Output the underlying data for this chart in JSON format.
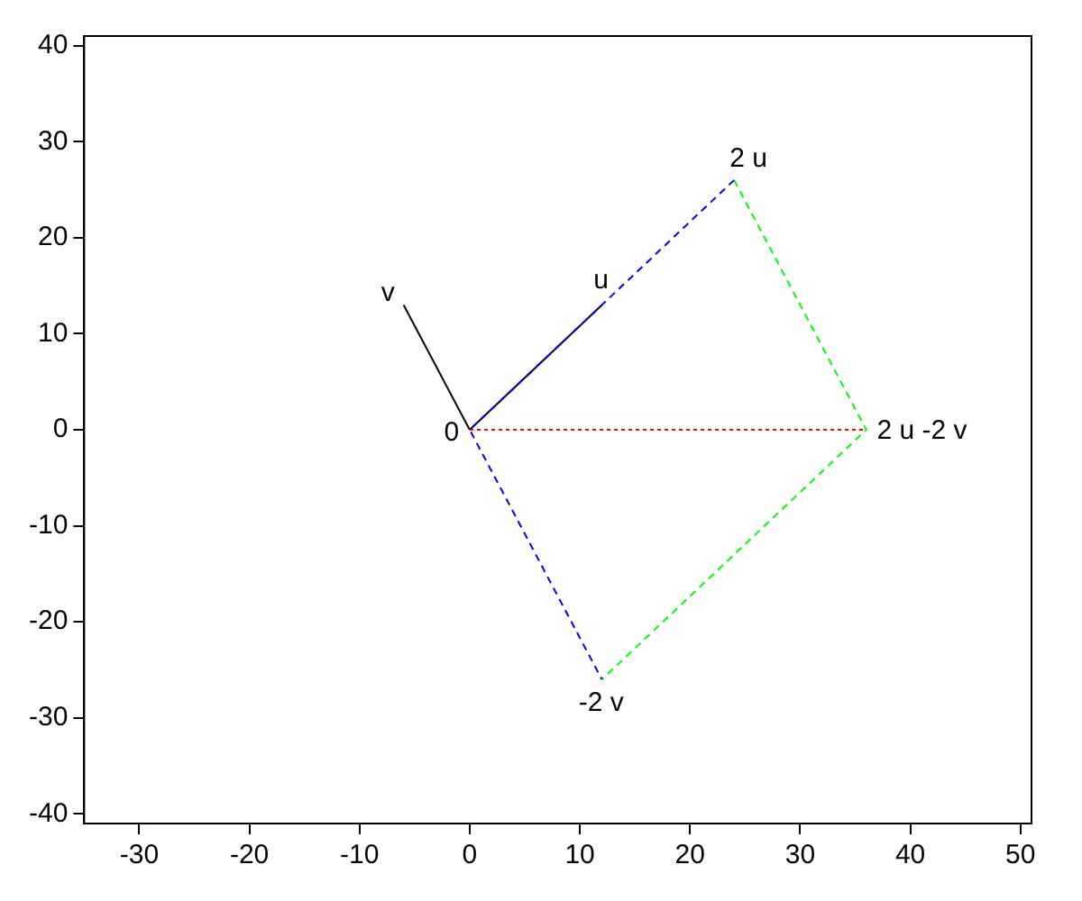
{
  "chart_data": {
    "type": "line",
    "xlim": [
      -35,
      51
    ],
    "ylim": [
      -41,
      41
    ],
    "xticks": [
      -30,
      -20,
      -10,
      0,
      10,
      20,
      30,
      40,
      50
    ],
    "yticks": [
      -40,
      -30,
      -20,
      -10,
      0,
      10,
      20,
      30,
      40
    ],
    "grid": false,
    "legend": false,
    "marker": "none",
    "series": [
      {
        "color": "#0000ff",
        "line_style": "dashed",
        "x": [
          24,
          0,
          12
        ],
        "values": [
          26,
          0,
          -26
        ]
      },
      {
        "color": "#00ff00",
        "line_style": "dashed",
        "x": [
          24,
          36,
          12
        ],
        "values": [
          26,
          0,
          -26
        ]
      },
      {
        "color": "#ff0000",
        "line_style": "dotted",
        "x": [
          0,
          36
        ],
        "values": [
          0,
          0
        ]
      },
      {
        "color": "#000000",
        "line_style": "solid",
        "x": [
          0,
          12
        ],
        "values": [
          0,
          13
        ]
      },
      {
        "color": "#000000",
        "line_style": "solid",
        "x": [
          0,
          -6
        ],
        "values": [
          0,
          13
        ]
      }
    ],
    "annotations": [
      {
        "text": "0",
        "x": 0,
        "y": 0
      },
      {
        "text": "u",
        "x": 12,
        "y": 13
      },
      {
        "text": "v",
        "x": -6,
        "y": 13
      },
      {
        "text": "2 u",
        "x": 24,
        "y": 26
      },
      {
        "text": "2 u -2 v",
        "x": 36,
        "y": 0
      },
      {
        "text": "-2 v",
        "x": 12,
        "y": -26
      }
    ]
  }
}
